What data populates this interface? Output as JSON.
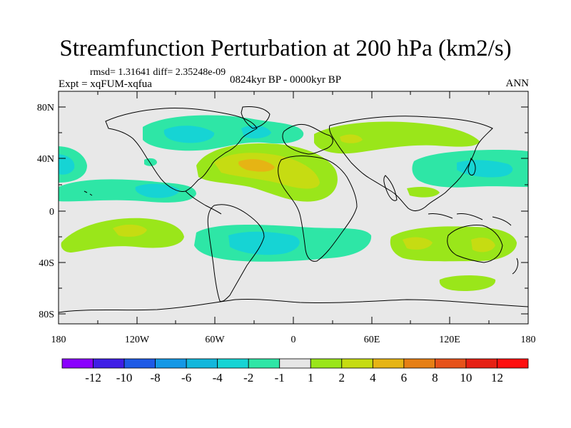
{
  "title": "Streamfunction Perturbation at 200 hPa (km2/s)",
  "stats": "rmsd= 1.31641 diff= 2.35248e-09",
  "experiment": "Expt = xqFUM-xqfua",
  "period": "0824kyr BP - 0000kyr BP",
  "season": "ANN",
  "map": {
    "background_color": "#e8e8e8",
    "lat_ticks": [
      "80N",
      "40N",
      "0",
      "40S",
      "80S"
    ],
    "lon_ticks": [
      "180",
      "120W",
      "60W",
      "0",
      "60E",
      "120E",
      "180"
    ]
  },
  "colorbar": {
    "labels": [
      "-12",
      "-10",
      "-8",
      "-6",
      "-4",
      "-2",
      "-1",
      "1",
      "2",
      "4",
      "6",
      "8",
      "10",
      "12"
    ],
    "colors": [
      "#8a00ff",
      "#3f1ee6",
      "#1e5ae6",
      "#1498e6",
      "#12b7dc",
      "#16d4d4",
      "#2ee6a6",
      "#e6e6e6",
      "#9ae61a",
      "#c6dc12",
      "#e6b414",
      "#e67f14",
      "#e6521a",
      "#e62014",
      "#ff1010"
    ]
  }
}
